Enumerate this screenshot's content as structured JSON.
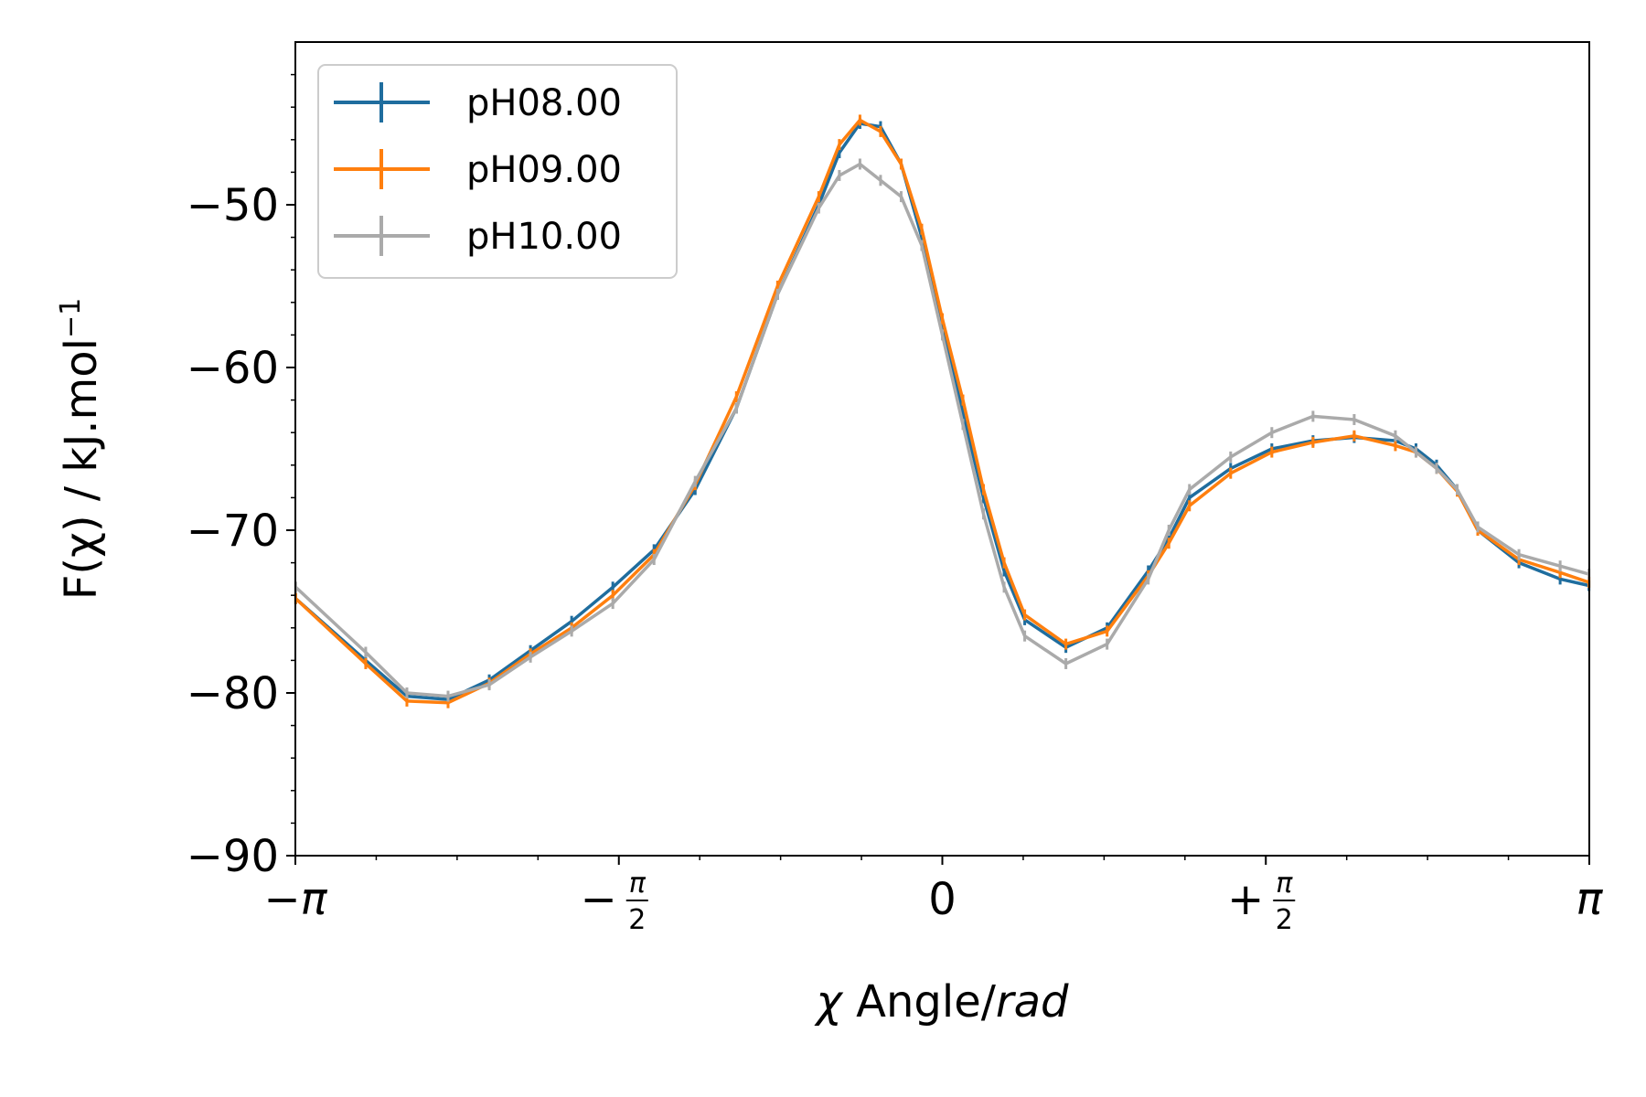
{
  "chart_data": {
    "type": "line",
    "title": "",
    "xlabel": {
      "symbol": "χ",
      "text": " Angle/",
      "unit": "rad"
    },
    "ylabel": {
      "text": "F(χ) / kJ.mol",
      "sup": "−1"
    },
    "xlim": [
      -3.14159,
      3.14159
    ],
    "ylim": [
      -90,
      -40
    ],
    "x_ticks": [
      {
        "value": -3.14159,
        "main": "−π",
        "frac": false
      },
      {
        "value": -1.5708,
        "main": "−",
        "frac": true,
        "num": "π",
        "den": "2"
      },
      {
        "value": 0,
        "main": "0",
        "frac": false
      },
      {
        "value": 1.5708,
        "main": "+",
        "frac": true,
        "num": "π",
        "den": "2"
      },
      {
        "value": 3.14159,
        "main": "π",
        "frac": false
      }
    ],
    "y_ticks": [
      {
        "value": -50,
        "label": "−50"
      },
      {
        "value": -60,
        "label": "−60"
      },
      {
        "value": -70,
        "label": "−70"
      },
      {
        "value": -80,
        "label": "−80"
      },
      {
        "value": -90,
        "label": "−90"
      }
    ],
    "grid": false,
    "legend_position": "top-left",
    "series": [
      {
        "name": "pH08.00",
        "color": "#1f6d9e",
        "x": [
          -3.14,
          -2.8,
          -2.6,
          -2.4,
          -2.2,
          -2.0,
          -1.8,
          -1.6,
          -1.4,
          -1.2,
          -1.0,
          -0.8,
          -0.6,
          -0.5,
          -0.4,
          -0.3,
          -0.2,
          -0.1,
          0.0,
          0.1,
          0.2,
          0.3,
          0.4,
          0.6,
          0.8,
          1.0,
          1.1,
          1.2,
          1.4,
          1.6,
          1.8,
          2.0,
          2.2,
          2.3,
          2.4,
          2.5,
          2.6,
          2.8,
          3.0,
          3.14
        ],
        "y": [
          -74.2,
          -78.0,
          -80.2,
          -80.4,
          -79.2,
          -77.4,
          -75.6,
          -73.5,
          -71.2,
          -67.5,
          -62.5,
          -55.5,
          -50.0,
          -46.8,
          -45.0,
          -45.2,
          -47.5,
          -52.0,
          -57.5,
          -62.8,
          -68.0,
          -72.5,
          -75.5,
          -77.2,
          -76.0,
          -72.5,
          -70.5,
          -68.0,
          -66.2,
          -65.0,
          -64.5,
          -64.3,
          -64.5,
          -65.0,
          -66.0,
          -67.5,
          -70.0,
          -72.0,
          -73.0,
          -73.4
        ]
      },
      {
        "name": "pH09.00",
        "color": "#ff7f0e",
        "x": [
          -3.14,
          -2.8,
          -2.6,
          -2.4,
          -2.2,
          -2.0,
          -1.8,
          -1.6,
          -1.4,
          -1.2,
          -1.0,
          -0.8,
          -0.6,
          -0.5,
          -0.4,
          -0.3,
          -0.2,
          -0.1,
          0.0,
          0.1,
          0.2,
          0.3,
          0.4,
          0.6,
          0.8,
          1.0,
          1.1,
          1.2,
          1.4,
          1.6,
          1.8,
          2.0,
          2.2,
          2.3,
          2.4,
          2.5,
          2.6,
          2.8,
          3.0,
          3.14
        ],
        "y": [
          -74.2,
          -78.2,
          -80.5,
          -80.6,
          -79.4,
          -77.6,
          -76.0,
          -74.0,
          -71.5,
          -67.2,
          -61.8,
          -55.0,
          -49.5,
          -46.3,
          -44.8,
          -45.5,
          -47.5,
          -51.5,
          -57.0,
          -62.0,
          -67.5,
          -72.0,
          -75.2,
          -77.0,
          -76.2,
          -72.8,
          -70.8,
          -68.5,
          -66.5,
          -65.2,
          -64.6,
          -64.2,
          -64.8,
          -65.2,
          -66.2,
          -67.6,
          -70.0,
          -71.8,
          -72.6,
          -73.2
        ]
      },
      {
        "name": "pH10.00",
        "color": "#aaaaaa",
        "x": [
          -3.14,
          -2.8,
          -2.6,
          -2.4,
          -2.2,
          -2.0,
          -1.8,
          -1.6,
          -1.4,
          -1.2,
          -1.0,
          -0.8,
          -0.6,
          -0.5,
          -0.4,
          -0.3,
          -0.2,
          -0.1,
          0.0,
          0.1,
          0.2,
          0.3,
          0.4,
          0.6,
          0.8,
          1.0,
          1.1,
          1.2,
          1.4,
          1.6,
          1.8,
          2.0,
          2.2,
          2.3,
          2.4,
          2.5,
          2.6,
          2.8,
          3.0,
          3.14
        ],
        "y": [
          -73.5,
          -77.5,
          -80.0,
          -80.2,
          -79.5,
          -77.8,
          -76.2,
          -74.5,
          -71.8,
          -67.0,
          -62.5,
          -55.5,
          -50.2,
          -48.2,
          -47.5,
          -48.5,
          -49.5,
          -52.5,
          -58.0,
          -63.5,
          -69.0,
          -73.5,
          -76.5,
          -78.2,
          -77.0,
          -73.0,
          -70.0,
          -67.5,
          -65.5,
          -64.0,
          -63.0,
          -63.2,
          -64.2,
          -65.2,
          -66.2,
          -67.5,
          -69.8,
          -71.5,
          -72.2,
          -72.7
        ]
      }
    ]
  }
}
